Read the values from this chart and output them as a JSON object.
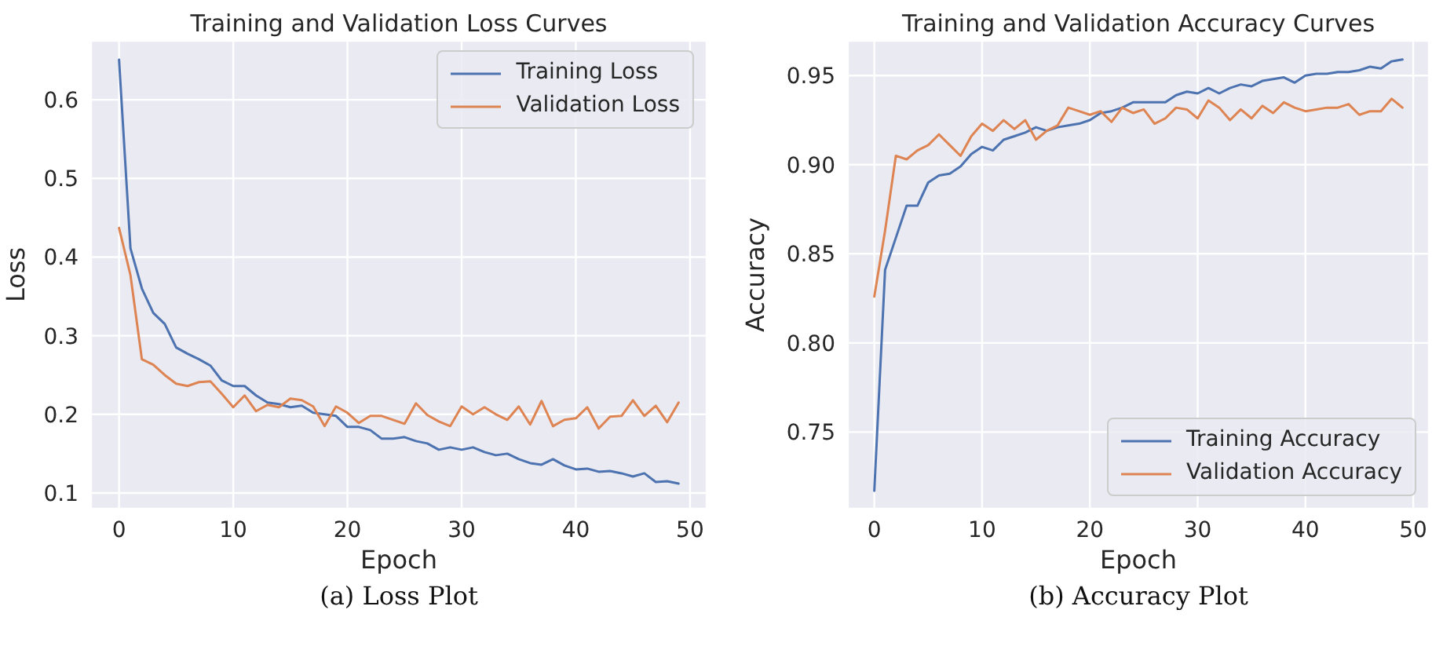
{
  "chart_data": [
    {
      "type": "line",
      "title": "Training and Validation Loss Curves",
      "xlabel": "Epoch",
      "ylabel": "Loss",
      "x": [
        0,
        1,
        2,
        3,
        4,
        5,
        6,
        7,
        8,
        9,
        10,
        11,
        12,
        13,
        14,
        15,
        16,
        17,
        18,
        19,
        20,
        21,
        22,
        23,
        24,
        25,
        26,
        27,
        28,
        29,
        30,
        31,
        32,
        33,
        34,
        35,
        36,
        37,
        38,
        39,
        40,
        41,
        42,
        43,
        44,
        45,
        46,
        47,
        48,
        49
      ],
      "series": [
        {
          "name": "Training Loss",
          "color": "#4c72b0",
          "values": [
            0.651,
            0.411,
            0.36,
            0.329,
            0.315,
            0.285,
            0.277,
            0.27,
            0.262,
            0.243,
            0.236,
            0.236,
            0.224,
            0.215,
            0.213,
            0.209,
            0.211,
            0.202,
            0.2,
            0.198,
            0.184,
            0.184,
            0.18,
            0.169,
            0.169,
            0.171,
            0.166,
            0.163,
            0.155,
            0.158,
            0.155,
            0.158,
            0.152,
            0.148,
            0.15,
            0.143,
            0.138,
            0.136,
            0.143,
            0.135,
            0.13,
            0.131,
            0.127,
            0.128,
            0.125,
            0.121,
            0.125,
            0.114,
            0.115,
            0.112
          ]
        },
        {
          "name": "Validation Loss",
          "color": "#dd8452",
          "values": [
            0.437,
            0.377,
            0.27,
            0.263,
            0.25,
            0.239,
            0.236,
            0.241,
            0.242,
            0.226,
            0.209,
            0.224,
            0.204,
            0.212,
            0.209,
            0.22,
            0.218,
            0.21,
            0.185,
            0.21,
            0.202,
            0.189,
            0.198,
            0.198,
            0.193,
            0.188,
            0.214,
            0.199,
            0.191,
            0.185,
            0.21,
            0.2,
            0.209,
            0.2,
            0.193,
            0.21,
            0.187,
            0.217,
            0.185,
            0.193,
            0.195,
            0.209,
            0.182,
            0.197,
            0.198,
            0.218,
            0.198,
            0.211,
            0.19,
            0.215
          ]
        }
      ],
      "xlim": [
        -2.45,
        51.45
      ],
      "xticks": [
        0,
        10,
        20,
        30,
        40,
        50
      ],
      "ylim": [
        0.08,
        0.675
      ],
      "yticks": [
        0.1,
        0.2,
        0.3,
        0.4,
        0.5,
        0.6
      ],
      "grid": true,
      "legend": "top right",
      "line_style": "solid",
      "marker": "none",
      "annotations": [
        "(a) Loss Plot"
      ]
    },
    {
      "type": "line",
      "title": "Training and Validation Accuracy Curves",
      "xlabel": "Epoch",
      "ylabel": "Accuracy",
      "x": [
        0,
        1,
        2,
        3,
        4,
        5,
        6,
        7,
        8,
        9,
        10,
        11,
        12,
        13,
        14,
        15,
        16,
        17,
        18,
        19,
        20,
        21,
        22,
        23,
        24,
        25,
        26,
        27,
        28,
        29,
        30,
        31,
        32,
        33,
        34,
        35,
        36,
        37,
        38,
        39,
        40,
        41,
        42,
        43,
        44,
        45,
        46,
        47,
        48,
        49
      ],
      "series": [
        {
          "name": "Training Accuracy",
          "color": "#4c72b0",
          "values": [
            0.717,
            0.841,
            0.859,
            0.877,
            0.877,
            0.89,
            0.894,
            0.895,
            0.899,
            0.906,
            0.91,
            0.908,
            0.914,
            0.916,
            0.918,
            0.921,
            0.919,
            0.921,
            0.922,
            0.923,
            0.925,
            0.929,
            0.93,
            0.932,
            0.935,
            0.935,
            0.935,
            0.935,
            0.939,
            0.941,
            0.94,
            0.943,
            0.94,
            0.943,
            0.945,
            0.944,
            0.947,
            0.948,
            0.949,
            0.946,
            0.95,
            0.951,
            0.951,
            0.952,
            0.952,
            0.953,
            0.955,
            0.954,
            0.958,
            0.959
          ]
        },
        {
          "name": "Validation Accuracy",
          "color": "#dd8452",
          "values": [
            0.826,
            0.863,
            0.905,
            0.903,
            0.908,
            0.911,
            0.917,
            0.911,
            0.905,
            0.916,
            0.923,
            0.919,
            0.925,
            0.92,
            0.925,
            0.914,
            0.919,
            0.922,
            0.932,
            0.93,
            0.928,
            0.93,
            0.924,
            0.932,
            0.929,
            0.931,
            0.923,
            0.926,
            0.932,
            0.931,
            0.926,
            0.936,
            0.932,
            0.925,
            0.931,
            0.926,
            0.933,
            0.929,
            0.935,
            0.932,
            0.93,
            0.931,
            0.932,
            0.932,
            0.934,
            0.928,
            0.93,
            0.93,
            0.937,
            0.932
          ]
        }
      ],
      "xlim": [
        -2.45,
        51.45
      ],
      "xticks": [
        0,
        10,
        20,
        30,
        40,
        50
      ],
      "ylim": [
        0.707,
        0.9695
      ],
      "yticks": [
        0.75,
        {
          "value": 0.8,
          "label": "0.80"
        },
        0.85,
        {
          "value": 0.9,
          "label": "0.90"
        },
        0.95
      ],
      "grid": true,
      "legend": "bottom right",
      "line_style": "solid",
      "marker": "none",
      "annotations": [
        "(b) Accuracy Plot"
      ]
    }
  ]
}
